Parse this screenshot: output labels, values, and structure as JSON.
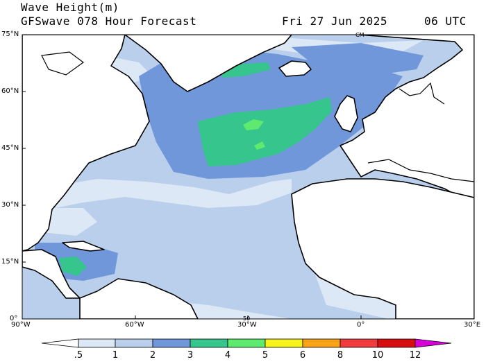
{
  "header": {
    "variable": "Wave Height(m)",
    "model_line": "GFSwave 078 Hour Forecast",
    "date": "Fri 27 Jun 2025",
    "time": "06 UTC"
  },
  "map": {
    "lon_range": [
      -90,
      30
    ],
    "lat_range": [
      0,
      75
    ],
    "lat_ticks": [
      "75°N",
      "60°N",
      "45°N",
      "30°N",
      "15°N",
      "0°"
    ],
    "lon_ticks": [
      "90°W",
      "60°W",
      "30°W",
      "0°",
      "30°E"
    ],
    "contour_labels": [
      "CM",
      "50"
    ]
  },
  "colorbar": {
    "labels": [
      ".5",
      "1",
      "2",
      "3",
      "4",
      "5",
      "6",
      "8",
      "10",
      "12"
    ],
    "colors": [
      "#ffffff",
      "#dce8f6",
      "#b9cfeb",
      "#6f97d9",
      "#36c58c",
      "#5eea6e",
      "#f7f21a",
      "#f8a317",
      "#f03c3c",
      "#d60e0e",
      "#d800d8"
    ]
  },
  "colors": {
    "land": "#ffffff",
    "coast": "#000000",
    "ocean_low": "#b9cfeb",
    "ocean_mid": "#6f97d9",
    "ocean_high": "#36c58c",
    "ocean_calm": "#dce8f6"
  }
}
